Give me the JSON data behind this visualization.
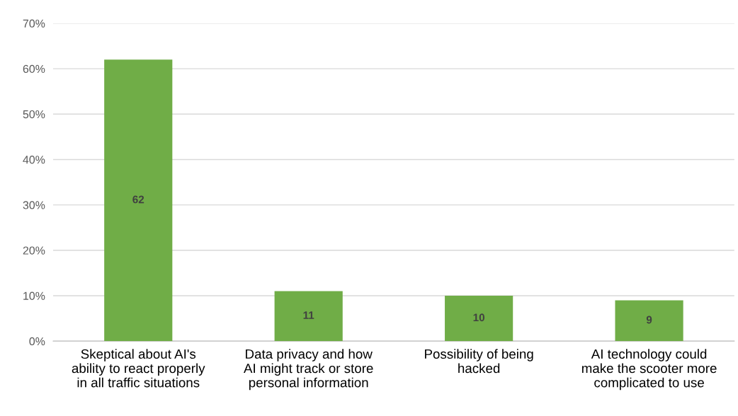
{
  "chart_data": {
    "type": "bar",
    "categories": [
      "Skeptical about AI's\nability to react properly\nin all traffic situations",
      "Data privacy and how\nAI might track or store\npersonal information",
      "Possibility of being\nhacked",
      "AI technology could\nmake the scooter more\ncomplicated to use"
    ],
    "values": [
      62,
      11,
      10,
      9
    ],
    "color": "#70ad47",
    "data_labels": true,
    "ylim": [
      0,
      70
    ],
    "yticks": [
      {
        "value": 0,
        "label": "0%"
      },
      {
        "value": 10,
        "label": "10%"
      },
      {
        "value": 20,
        "label": "20%"
      },
      {
        "value": 30,
        "label": "30%"
      },
      {
        "value": 40,
        "label": "40%"
      },
      {
        "value": 50,
        "label": "50%"
      },
      {
        "value": 60,
        "label": "60%"
      },
      {
        "value": 70,
        "label": "70%"
      }
    ],
    "grid": "y"
  }
}
